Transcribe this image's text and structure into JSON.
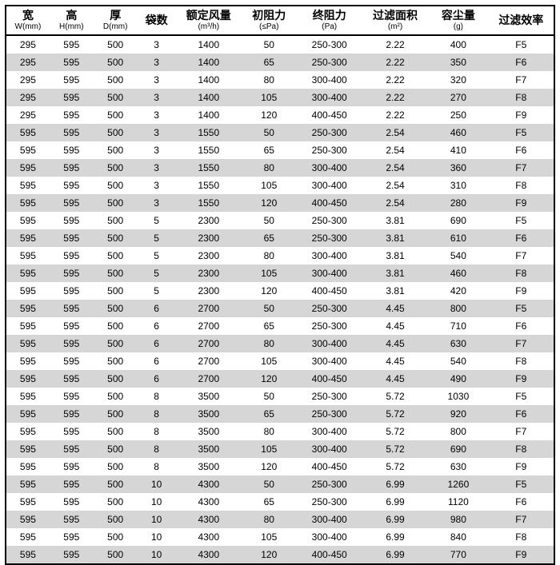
{
  "table": {
    "columns": [
      {
        "main": "宽",
        "sub": "W(mm)"
      },
      {
        "main": "高",
        "sub": "H(mm)"
      },
      {
        "main": "厚",
        "sub": "D(mm)"
      },
      {
        "main": "袋数",
        "sub": ""
      },
      {
        "main": "额定风量",
        "sub": "(m³/h)"
      },
      {
        "main": "初阻力",
        "sub": "(≤Pa)"
      },
      {
        "main": "终阻力",
        "sub": "(Pa)"
      },
      {
        "main": "过滤面积",
        "sub": "(m²)"
      },
      {
        "main": "容尘量",
        "sub": "(g)"
      },
      {
        "main": "过滤效率",
        "sub": ""
      }
    ],
    "rows": [
      [
        "295",
        "595",
        "500",
        "3",
        "1400",
        "50",
        "250-300",
        "2.22",
        "400",
        "F5"
      ],
      [
        "295",
        "595",
        "500",
        "3",
        "1400",
        "65",
        "250-300",
        "2.22",
        "350",
        "F6"
      ],
      [
        "295",
        "595",
        "500",
        "3",
        "1400",
        "80",
        "300-400",
        "2.22",
        "320",
        "F7"
      ],
      [
        "295",
        "595",
        "500",
        "3",
        "1400",
        "105",
        "300-400",
        "2.22",
        "270",
        "F8"
      ],
      [
        "295",
        "595",
        "500",
        "3",
        "1400",
        "120",
        "400-450",
        "2.22",
        "250",
        "F9"
      ],
      [
        "595",
        "595",
        "500",
        "3",
        "1550",
        "50",
        "250-300",
        "2.54",
        "460",
        "F5"
      ],
      [
        "595",
        "595",
        "500",
        "3",
        "1550",
        "65",
        "250-300",
        "2.54",
        "410",
        "F6"
      ],
      [
        "595",
        "595",
        "500",
        "3",
        "1550",
        "80",
        "300-400",
        "2.54",
        "360",
        "F7"
      ],
      [
        "595",
        "595",
        "500",
        "3",
        "1550",
        "105",
        "300-400",
        "2.54",
        "310",
        "F8"
      ],
      [
        "595",
        "595",
        "500",
        "3",
        "1550",
        "120",
        "400-450",
        "2.54",
        "280",
        "F9"
      ],
      [
        "595",
        "595",
        "500",
        "5",
        "2300",
        "50",
        "250-300",
        "3.81",
        "690",
        "F5"
      ],
      [
        "595",
        "595",
        "500",
        "5",
        "2300",
        "65",
        "250-300",
        "3.81",
        "610",
        "F6"
      ],
      [
        "595",
        "595",
        "500",
        "5",
        "2300",
        "80",
        "300-400",
        "3.81",
        "540",
        "F7"
      ],
      [
        "595",
        "595",
        "500",
        "5",
        "2300",
        "105",
        "300-400",
        "3.81",
        "460",
        "F8"
      ],
      [
        "595",
        "595",
        "500",
        "5",
        "2300",
        "120",
        "400-450",
        "3.81",
        "420",
        "F9"
      ],
      [
        "595",
        "595",
        "500",
        "6",
        "2700",
        "50",
        "250-300",
        "4.45",
        "800",
        "F5"
      ],
      [
        "595",
        "595",
        "500",
        "6",
        "2700",
        "65",
        "250-300",
        "4.45",
        "710",
        "F6"
      ],
      [
        "595",
        "595",
        "500",
        "6",
        "2700",
        "80",
        "300-400",
        "4.45",
        "630",
        "F7"
      ],
      [
        "595",
        "595",
        "500",
        "6",
        "2700",
        "105",
        "300-400",
        "4.45",
        "540",
        "F8"
      ],
      [
        "595",
        "595",
        "500",
        "6",
        "2700",
        "120",
        "400-450",
        "4.45",
        "490",
        "F9"
      ],
      [
        "595",
        "595",
        "500",
        "8",
        "3500",
        "50",
        "250-300",
        "5.72",
        "1030",
        "F5"
      ],
      [
        "595",
        "595",
        "500",
        "8",
        "3500",
        "65",
        "250-300",
        "5.72",
        "920",
        "F6"
      ],
      [
        "595",
        "595",
        "500",
        "8",
        "3500",
        "80",
        "300-400",
        "5.72",
        "800",
        "F7"
      ],
      [
        "595",
        "595",
        "500",
        "8",
        "3500",
        "105",
        "300-400",
        "5.72",
        "690",
        "F8"
      ],
      [
        "595",
        "595",
        "500",
        "8",
        "3500",
        "120",
        "400-450",
        "5.72",
        "630",
        "F9"
      ],
      [
        "595",
        "595",
        "500",
        "10",
        "4300",
        "50",
        "250-300",
        "6.99",
        "1260",
        "F5"
      ],
      [
        "595",
        "595",
        "500",
        "10",
        "4300",
        "65",
        "250-300",
        "6.99",
        "1120",
        "F6"
      ],
      [
        "595",
        "595",
        "500",
        "10",
        "4300",
        "80",
        "300-400",
        "6.99",
        "980",
        "F7"
      ],
      [
        "595",
        "595",
        "500",
        "10",
        "4300",
        "105",
        "300-400",
        "6.99",
        "840",
        "F8"
      ],
      [
        "595",
        "595",
        "500",
        "10",
        "4300",
        "120",
        "400-450",
        "6.99",
        "770",
        "F9"
      ]
    ],
    "stripe_even_color": "#d6d6d6",
    "stripe_odd_color": "#ffffff",
    "border_color": "#000000",
    "header_fontsize": 14,
    "body_fontsize": 12
  }
}
